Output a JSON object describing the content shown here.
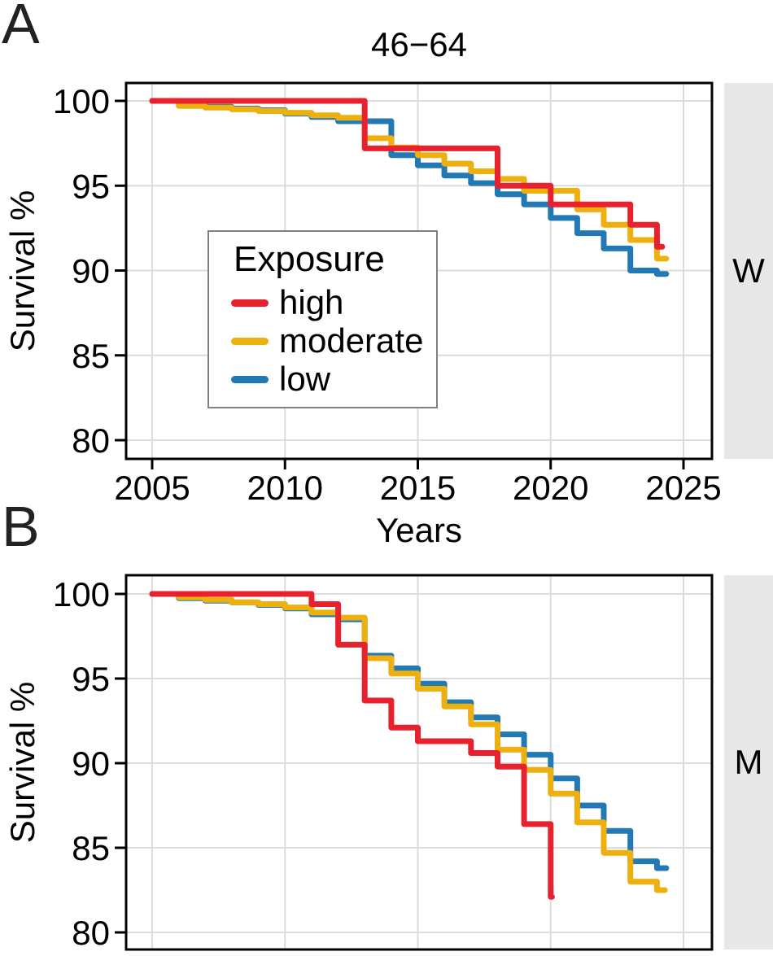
{
  "figure": {
    "description": "Two-panel faceted step survival plot by exposure level"
  },
  "panels": {
    "a": {
      "letter": "A",
      "title": "46−64",
      "strip_label": "W",
      "ylabel": "Survival %"
    },
    "b": {
      "letter": "B",
      "strip_label": "M",
      "ylabel": "Survival %"
    },
    "shared_xlabel": "Years"
  },
  "legend": {
    "title": "Exposure",
    "items": [
      {
        "label": "high",
        "color": "#e7212e"
      },
      {
        "label": "moderate",
        "color": "#eeb00e"
      },
      {
        "label": "low",
        "color": "#2379b4"
      }
    ]
  },
  "colors": {
    "high": "#e7212e",
    "moderate": "#eeb00e",
    "low": "#2379b4",
    "gridline": "#dcdcdc",
    "plot_border": "#000000",
    "strip_bg": "#e7e7e7",
    "legend_border": "#808080",
    "text": "#000000"
  },
  "chart_data": [
    {
      "panel": "A",
      "type": "line",
      "subtype": "kaplan-meier-step",
      "title": "46−64",
      "strip": "W",
      "xlabel": "Years",
      "ylabel": "Survival %",
      "xlim": [
        2004,
        2026.1
      ],
      "ylim": [
        78.9,
        101.1
      ],
      "xticks": [
        2005,
        2010,
        2015,
        2020,
        2025
      ],
      "yticks": [
        100,
        95,
        90,
        85,
        80
      ],
      "grid": true,
      "xtick_labels_visible": true,
      "legend_position": "inside center-left",
      "series": [
        {
          "name": "high",
          "color": "#e7212e",
          "end": 2024.2,
          "points": [
            [
              2005,
              100
            ],
            [
              2013,
              97.2
            ],
            [
              2018,
              95.0
            ],
            [
              2020,
              93.9
            ],
            [
              2023,
              92.7
            ],
            [
              2024,
              91.4
            ]
          ]
        },
        {
          "name": "moderate",
          "color": "#eeb00e",
          "end": 2024.35,
          "points": [
            [
              2005,
              100
            ],
            [
              2006,
              99.7
            ],
            [
              2007,
              99.6
            ],
            [
              2008,
              99.5
            ],
            [
              2009,
              99.4
            ],
            [
              2010,
              99.3
            ],
            [
              2011,
              99.15
            ],
            [
              2012,
              99.0
            ],
            [
              2013,
              97.8
            ],
            [
              2014,
              97.25
            ],
            [
              2015,
              96.8
            ],
            [
              2016,
              96.3
            ],
            [
              2017,
              95.85
            ],
            [
              2018,
              95.4
            ],
            [
              2019,
              94.7
            ],
            [
              2021,
              93.6
            ],
            [
              2022,
              92.7
            ],
            [
              2023,
              91.8
            ],
            [
              2024,
              90.7
            ]
          ]
        },
        {
          "name": "low",
          "color": "#2379b4",
          "end": 2024.35,
          "points": [
            [
              2005,
              100
            ],
            [
              2006,
              99.8
            ],
            [
              2007,
              99.65
            ],
            [
              2008,
              99.55
            ],
            [
              2009,
              99.45
            ],
            [
              2010,
              99.25
            ],
            [
              2011,
              99.05
            ],
            [
              2012,
              98.8
            ],
            [
              2014,
              96.8
            ],
            [
              2015,
              96.2
            ],
            [
              2016,
              95.6
            ],
            [
              2017,
              95.15
            ],
            [
              2018,
              94.5
            ],
            [
              2019,
              93.9
            ],
            [
              2020,
              93.1
            ],
            [
              2021,
              92.2
            ],
            [
              2022,
              91.3
            ],
            [
              2023,
              90.0
            ],
            [
              2024,
              89.8
            ]
          ]
        }
      ]
    },
    {
      "panel": "B",
      "type": "line",
      "subtype": "kaplan-meier-step",
      "title": "",
      "strip": "M",
      "xlabel": "Years",
      "ylabel": "Survival %",
      "xlim": [
        2004,
        2026.1
      ],
      "ylim": [
        79.0,
        101.1
      ],
      "xticks": [
        2005,
        2010,
        2015,
        2020,
        2025
      ],
      "yticks": [
        100,
        95,
        90,
        85,
        80
      ],
      "grid": true,
      "xtick_labels_visible": false,
      "legend_position": "none",
      "series": [
        {
          "name": "high",
          "color": "#e7212e",
          "end": 2020.05,
          "points": [
            [
              2005,
              100
            ],
            [
              2011,
              99.4
            ],
            [
              2012,
              97.0
            ],
            [
              2013,
              93.7
            ],
            [
              2014,
              92.1
            ],
            [
              2015,
              91.3
            ],
            [
              2017,
              90.6
            ],
            [
              2018,
              89.8
            ],
            [
              2019,
              86.4
            ],
            [
              2020,
              82.1
            ]
          ]
        },
        {
          "name": "moderate",
          "color": "#eeb00e",
          "end": 2024.3,
          "points": [
            [
              2005,
              100
            ],
            [
              2006,
              99.8
            ],
            [
              2007,
              99.65
            ],
            [
              2008,
              99.5
            ],
            [
              2009,
              99.4
            ],
            [
              2010,
              99.2
            ],
            [
              2011,
              98.9
            ],
            [
              2012,
              98.6
            ],
            [
              2013,
              96.2
            ],
            [
              2014,
              95.3
            ],
            [
              2015,
              94.4
            ],
            [
              2016,
              93.35
            ],
            [
              2017,
              92.3
            ],
            [
              2018,
              90.8
            ],
            [
              2019,
              89.6
            ],
            [
              2020,
              88.2
            ],
            [
              2021,
              86.5
            ],
            [
              2022,
              84.7
            ],
            [
              2023,
              83.0
            ],
            [
              2024,
              82.5
            ]
          ]
        },
        {
          "name": "low",
          "color": "#2379b4",
          "end": 2024.35,
          "points": [
            [
              2005,
              100
            ],
            [
              2006,
              99.75
            ],
            [
              2007,
              99.6
            ],
            [
              2008,
              99.5
            ],
            [
              2009,
              99.35
            ],
            [
              2010,
              99.15
            ],
            [
              2011,
              98.8
            ],
            [
              2012,
              98.5
            ],
            [
              2013,
              96.35
            ],
            [
              2014,
              95.6
            ],
            [
              2015,
              94.7
            ],
            [
              2016,
              93.6
            ],
            [
              2017,
              92.7
            ],
            [
              2018,
              91.7
            ],
            [
              2019,
              90.5
            ],
            [
              2020,
              89.1
            ],
            [
              2021,
              87.5
            ],
            [
              2022,
              86.0
            ],
            [
              2023,
              84.2
            ],
            [
              2024,
              83.8
            ]
          ]
        }
      ]
    }
  ]
}
